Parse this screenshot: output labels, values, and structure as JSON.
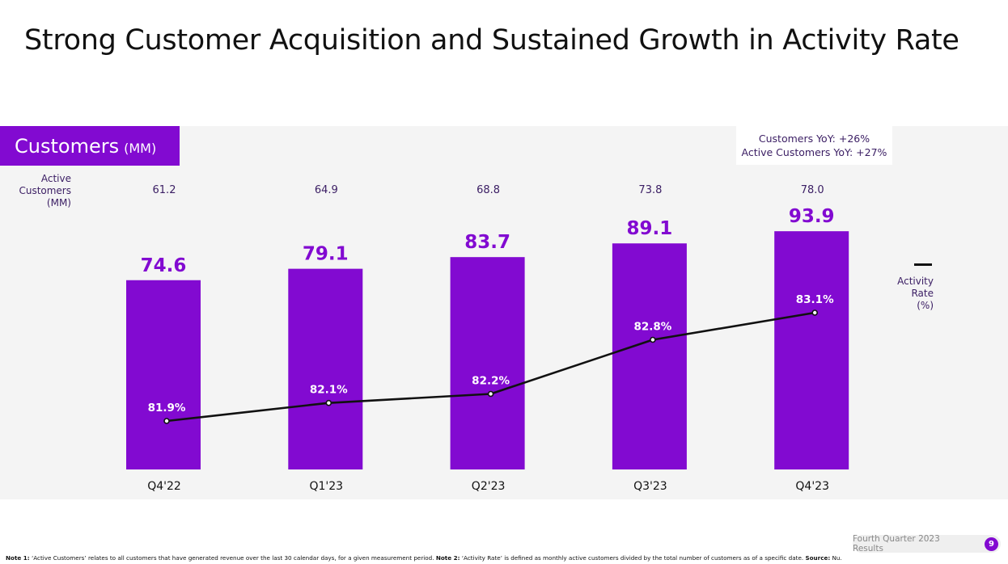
{
  "title": "Strong Customer Acquisition and Sustained Growth in Activity Rate",
  "section": {
    "title": "Customers",
    "unit": "(MM)"
  },
  "yoy": {
    "customers": "Customers YoY: +26%",
    "active": "Active Customers YoY: +27%"
  },
  "active_customers_label": [
    "Active",
    "Customers",
    "(MM)"
  ],
  "activity_legend_label": [
    "Activity",
    "Rate",
    "(%)"
  ],
  "colors": {
    "accent": "#820ad1",
    "line": "#111111",
    "panel": "#f4f4f4",
    "label": "#3a1d63"
  },
  "chart_data": {
    "type": "bar",
    "categories": [
      "Q4'22",
      "Q1'23",
      "Q2'23",
      "Q3'23",
      "Q4'23"
    ],
    "series": [
      {
        "name": "Customers",
        "values": [
          74.6,
          79.1,
          83.7,
          89.1,
          93.9
        ],
        "labels": [
          "74.6",
          "79.1",
          "83.7",
          "89.1",
          "93.9"
        ]
      },
      {
        "name": "Active Customers",
        "values": [
          61.2,
          64.9,
          68.8,
          73.8,
          78.0
        ],
        "labels": [
          "61.2",
          "64.9",
          "68.8",
          "73.8",
          "78.0"
        ]
      },
      {
        "name": "Activity Rate",
        "type": "line",
        "values": [
          81.9,
          82.1,
          82.2,
          82.8,
          83.1
        ],
        "labels": [
          "81.9%",
          "82.1%",
          "82.2%",
          "82.8%",
          "83.1%"
        ]
      }
    ],
    "ylim": [
      0,
      100
    ],
    "grid": false
  },
  "footer": {
    "note1_label": "Note 1:",
    "note1": " ‘Active Customers’ relates to all customers that have generated revenue over the last 30 calendar days, for a given measurement period. ",
    "note2_label": "Note 2:",
    "note2": " ‘Activity Rate’ is defined as monthly active customers divided by the total number of customers as of a specific date. ",
    "source_label": "Source:",
    "source": " Nu.",
    "badge": "Fourth Quarter 2023 Results",
    "page": "9"
  }
}
